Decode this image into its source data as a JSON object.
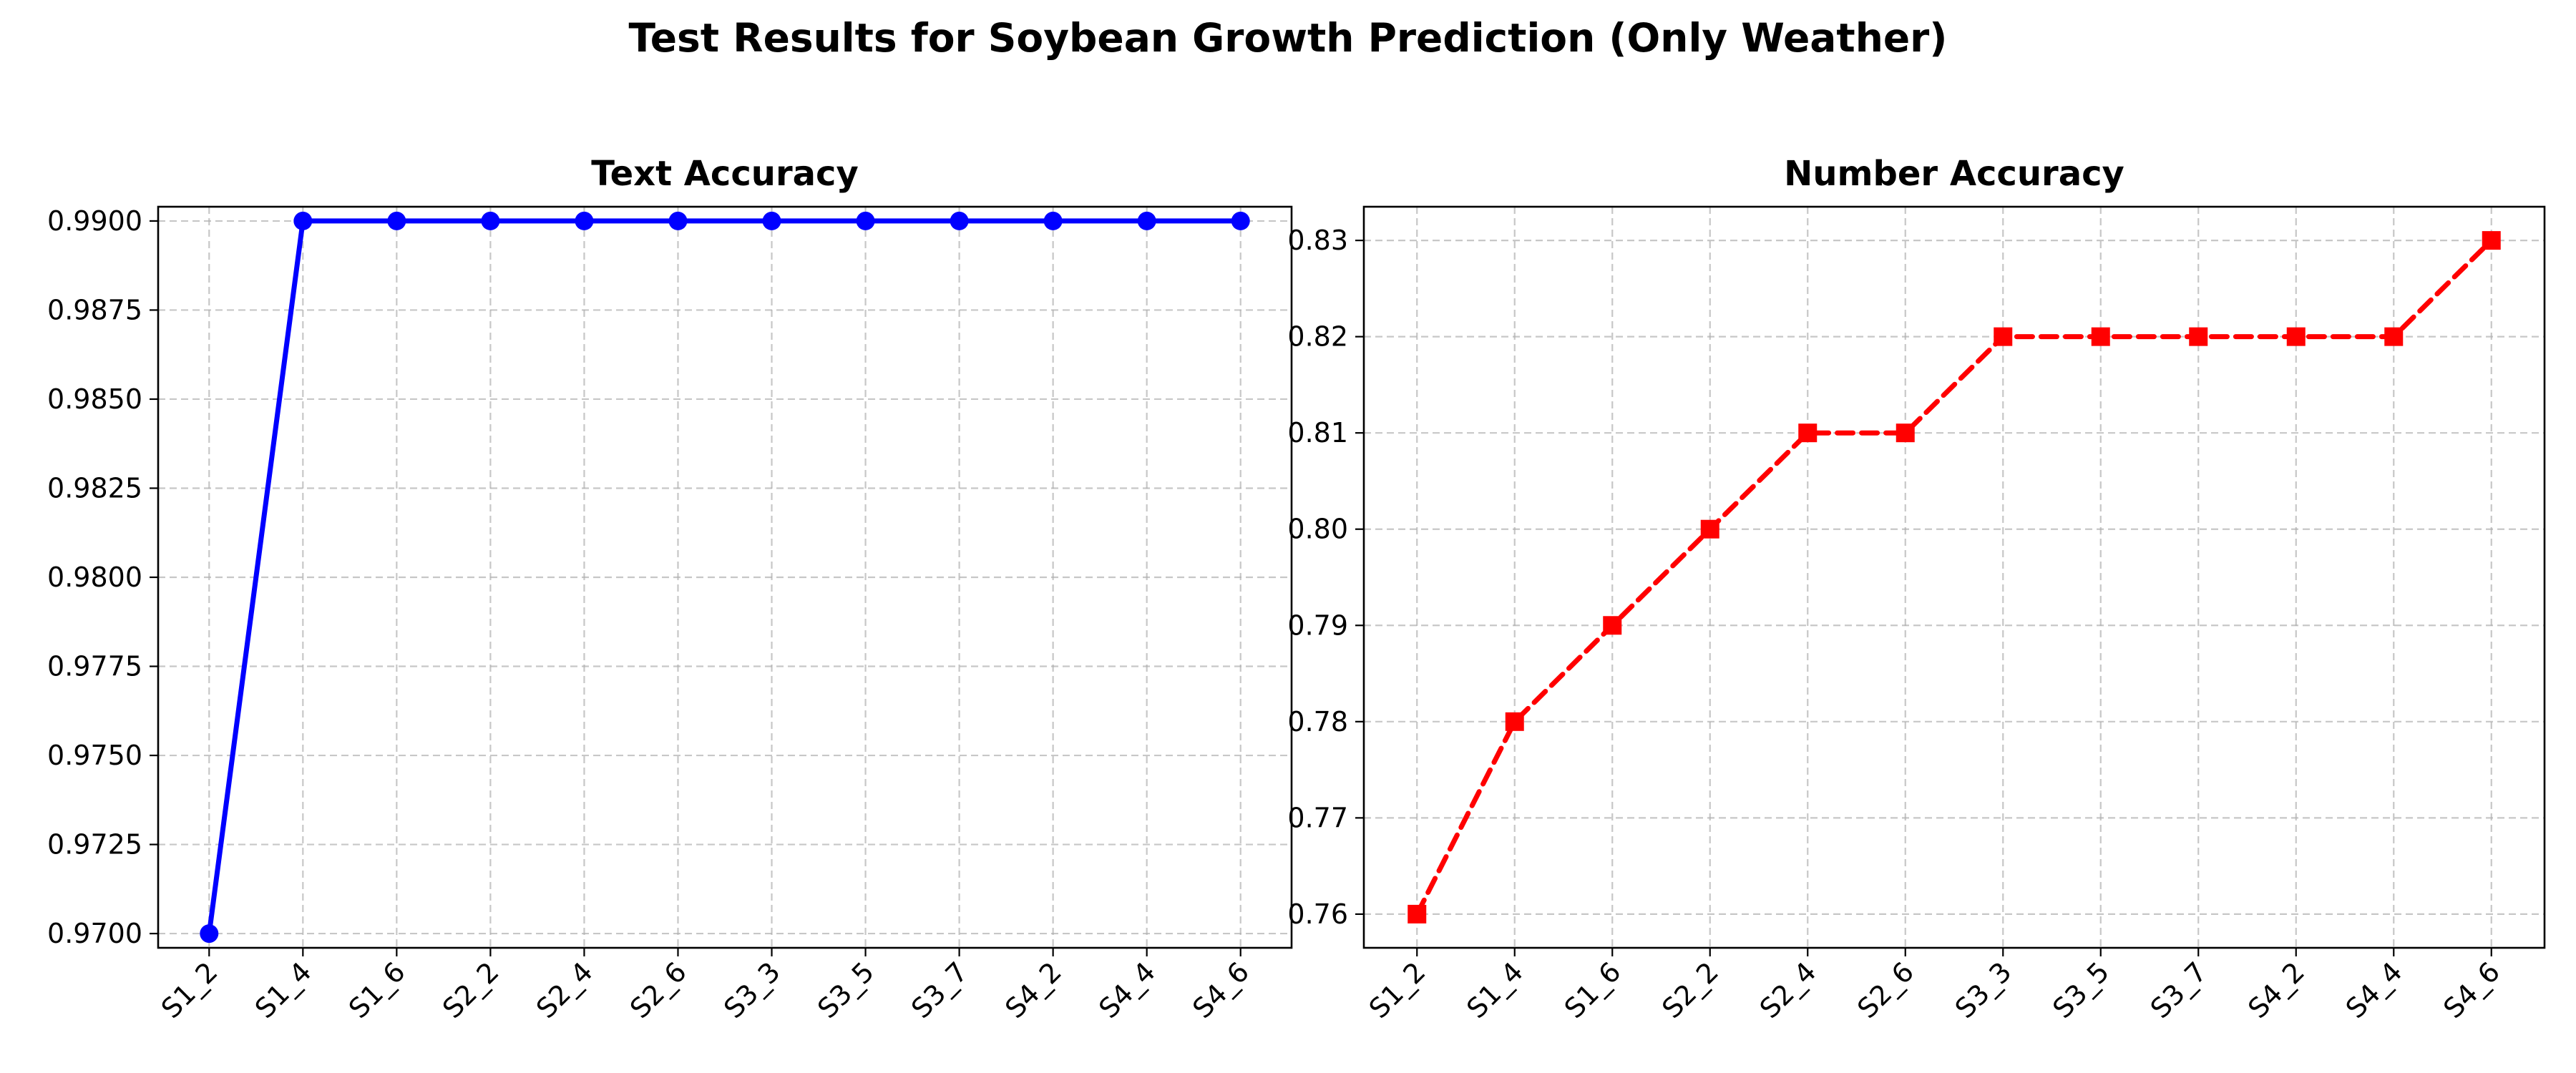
{
  "figure": {
    "suptitle": "Test Results for Soybean Growth Prediction (Only Weather)"
  },
  "chart_data": [
    {
      "type": "line",
      "title": "Text Accuracy",
      "xlabel": "",
      "ylabel": "",
      "categories": [
        "S1_2",
        "S1_4",
        "S1_6",
        "S2_2",
        "S2_4",
        "S2_6",
        "S3_3",
        "S3_5",
        "S3_7",
        "S4_2",
        "S4_4",
        "S4_6"
      ],
      "series": [
        {
          "values": [
            0.97,
            0.99,
            0.99,
            0.99,
            0.99,
            0.99,
            0.99,
            0.99,
            0.99,
            0.99,
            0.99,
            0.99
          ],
          "color": "#0000ff",
          "marker": "circle",
          "line_style": "solid"
        }
      ],
      "ylim": [
        0.9696,
        0.9904
      ],
      "yticks": [
        0.97,
        0.9725,
        0.975,
        0.9775,
        0.98,
        0.9825,
        0.985,
        0.9875,
        0.99
      ],
      "ytick_labels": [
        "0.9700",
        "0.9725",
        "0.9750",
        "0.9775",
        "0.9800",
        "0.9825",
        "0.9850",
        "0.9875",
        "0.9900"
      ],
      "grid": true,
      "xtick_rotation": 45
    },
    {
      "type": "line",
      "title": "Number Accuracy",
      "xlabel": "",
      "ylabel": "",
      "categories": [
        "S1_2",
        "S1_4",
        "S1_6",
        "S2_2",
        "S2_4",
        "S2_6",
        "S3_3",
        "S3_5",
        "S3_7",
        "S4_2",
        "S4_4",
        "S4_6"
      ],
      "series": [
        {
          "values": [
            0.76,
            0.78,
            0.79,
            0.8,
            0.81,
            0.81,
            0.82,
            0.82,
            0.82,
            0.82,
            0.82,
            0.83
          ],
          "color": "#ff0000",
          "marker": "square",
          "line_style": "dashed"
        }
      ],
      "ylim": [
        0.7565,
        0.8335
      ],
      "yticks": [
        0.76,
        0.77,
        0.78,
        0.79,
        0.8,
        0.81,
        0.82,
        0.83
      ],
      "ytick_labels": [
        "0.76",
        "0.77",
        "0.78",
        "0.79",
        "0.80",
        "0.81",
        "0.82",
        "0.83"
      ],
      "grid": true,
      "xtick_rotation": 45
    }
  ]
}
